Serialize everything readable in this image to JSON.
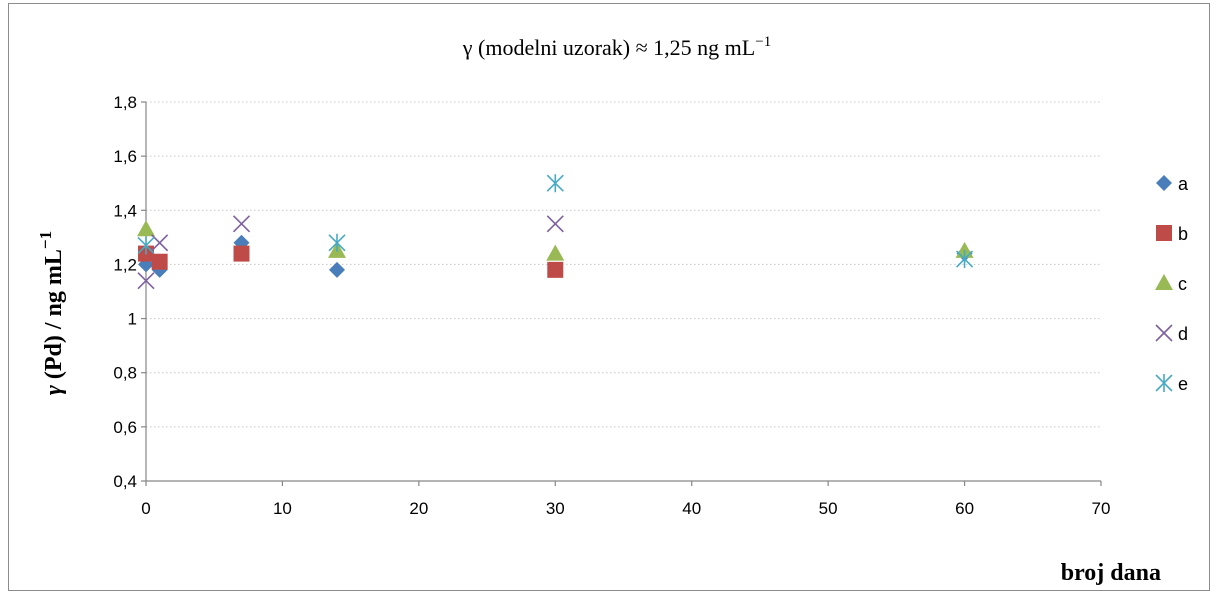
{
  "chart_data": {
    "type": "scatter",
    "title": "γ (modelni uzorak) ≈ 1,25 ng mL",
    "title_superscript": "−1",
    "xlabel": "broj dana",
    "ylabel_italic": "γ",
    "ylabel_main": " (Pd) / ng mL",
    "ylabel_superscript": "−1",
    "xlim": [
      0,
      70
    ],
    "ylim": [
      0.4,
      1.8
    ],
    "x_ticks": [
      0,
      10,
      20,
      30,
      40,
      50,
      60,
      70
    ],
    "x_tick_labels": [
      "0",
      "10",
      "20",
      "30",
      "40",
      "50",
      "60",
      "70"
    ],
    "y_ticks": [
      0.4,
      0.6,
      0.8,
      1.0,
      1.2,
      1.4,
      1.6,
      1.8
    ],
    "y_tick_labels": [
      "0,4",
      "0,6",
      "0,8",
      "1",
      "1,2",
      "1,4",
      "1,6",
      "1,8"
    ],
    "grid": true,
    "legend_position": "right",
    "series": [
      {
        "name": "a",
        "marker": "diamond",
        "color": "#4a7ebb",
        "points": [
          [
            0,
            1.2
          ],
          [
            1,
            1.18
          ],
          [
            7,
            1.28
          ],
          [
            14,
            1.18
          ],
          [
            30,
            1.18
          ],
          [
            60,
            1.24
          ]
        ]
      },
      {
        "name": "b",
        "marker": "square",
        "color": "#be4b48",
        "points": [
          [
            0,
            1.24
          ],
          [
            1,
            1.21
          ],
          [
            7,
            1.24
          ],
          [
            30,
            1.18
          ]
        ]
      },
      {
        "name": "c",
        "marker": "triangle",
        "color": "#98b954",
        "points": [
          [
            0,
            1.33
          ],
          [
            14,
            1.25
          ],
          [
            30,
            1.24
          ],
          [
            60,
            1.25
          ]
        ]
      },
      {
        "name": "d",
        "marker": "x",
        "color": "#7d60a0",
        "points": [
          [
            0,
            1.14
          ],
          [
            1,
            1.28
          ],
          [
            7,
            1.35
          ],
          [
            30,
            1.35
          ]
        ]
      },
      {
        "name": "e",
        "marker": "star",
        "color": "#46aac5",
        "points": [
          [
            0,
            1.27
          ],
          [
            14,
            1.28
          ],
          [
            30,
            1.5
          ],
          [
            60,
            1.22
          ]
        ]
      }
    ]
  }
}
